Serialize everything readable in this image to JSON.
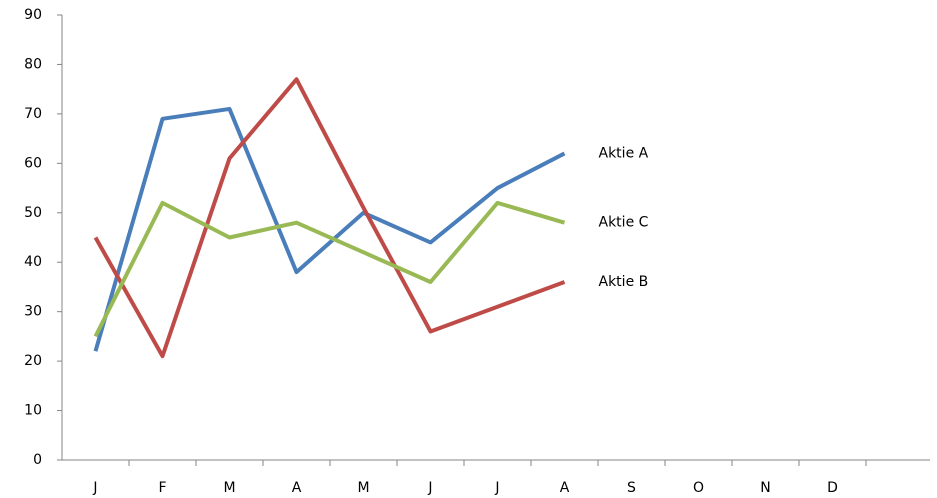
{
  "chart_data": {
    "type": "line",
    "categories": [
      "J",
      "F",
      "M",
      "A",
      "M",
      "J",
      "J",
      "A",
      "S",
      "O",
      "N",
      "D"
    ],
    "series": [
      {
        "name": "Aktie A",
        "color": "#4a7ebb",
        "values": [
          22,
          69,
          71,
          38,
          50,
          44,
          55,
          62,
          null,
          null,
          null,
          null
        ]
      },
      {
        "name": "Aktie B",
        "color": "#be4b48",
        "values": [
          45,
          21,
          61,
          77,
          51,
          26,
          31,
          36,
          null,
          null,
          null,
          null
        ]
      },
      {
        "name": "Aktie C",
        "color": "#98b954",
        "values": [
          25,
          52,
          45,
          48,
          42,
          36,
          52,
          48,
          null,
          null,
          null,
          null
        ]
      }
    ],
    "ylim": [
      0,
      90
    ],
    "yticks": [
      0,
      10,
      20,
      30,
      40,
      50,
      60,
      70,
      80,
      90
    ],
    "grid": false
  }
}
